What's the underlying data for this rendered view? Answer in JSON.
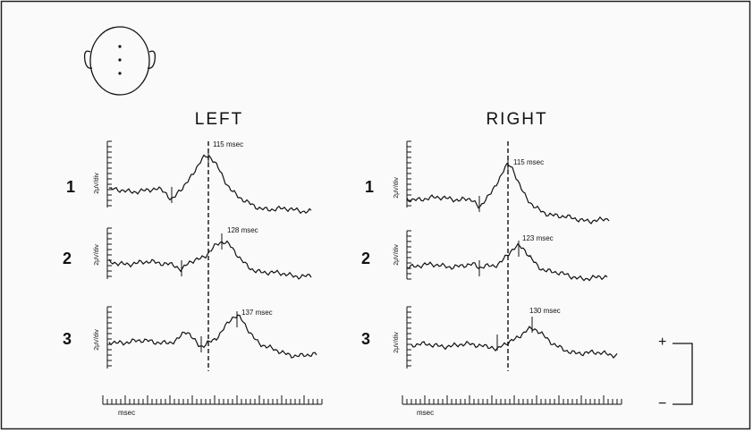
{
  "headings": {
    "left": "LEFT",
    "right": "RIGHT"
  },
  "rows": [
    "1",
    "2",
    "3"
  ],
  "scale_label": "2μV/div",
  "latencies": {
    "left": [
      "115 msec",
      "128 msec",
      "137 msec"
    ],
    "right": [
      "115 msec",
      "123 msec",
      "130 msec"
    ]
  },
  "time_axis_label": "msec",
  "polarity": {
    "positive": "+",
    "negative": "−"
  }
}
